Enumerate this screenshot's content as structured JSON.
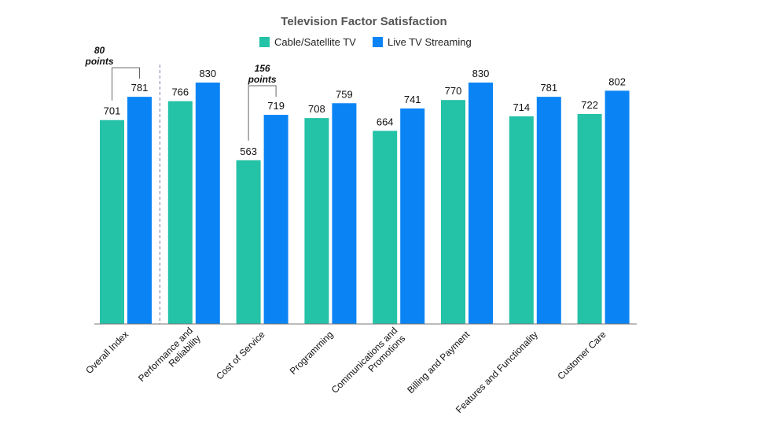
{
  "chart_data": {
    "type": "bar",
    "title": "Television Factor Satisfaction",
    "xlabel": "",
    "ylabel": "",
    "legend_position": "top-center",
    "grid": false,
    "ylim": [
      0,
      900
    ],
    "categories": [
      [
        "Overall Index"
      ],
      [
        "Performance and",
        "Reliability"
      ],
      [
        "Cost of Service"
      ],
      [
        "Programming"
      ],
      [
        "Communications and",
        "Promotions"
      ],
      [
        "Billing and Payment"
      ],
      [
        "Features and Functionality"
      ],
      [
        "Customer Care"
      ]
    ],
    "series": [
      {
        "name": "Cable/Satellite TV",
        "color": "#24C2A6",
        "values": [
          701,
          766,
          563,
          708,
          664,
          770,
          714,
          722
        ]
      },
      {
        "name": "Live TV Streaming",
        "color": "#0A84F5",
        "values": [
          781,
          830,
          719,
          759,
          741,
          830,
          781,
          802
        ]
      }
    ],
    "annotations": [
      {
        "category_index": 0,
        "lines": [
          "80",
          "points"
        ]
      },
      {
        "category_index": 2,
        "lines": [
          "156",
          "points"
        ]
      }
    ],
    "separator_after_category": 0
  }
}
